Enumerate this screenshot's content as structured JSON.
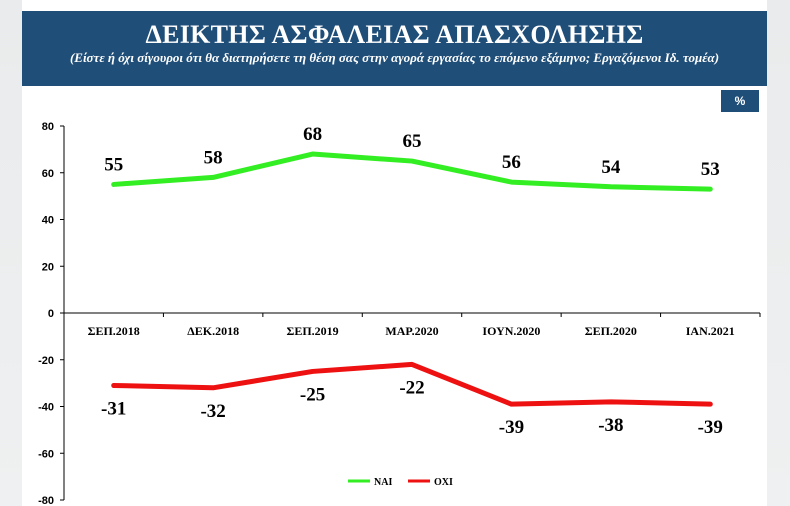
{
  "header": {
    "title": "ΔΕΙΚΤΗΣ ΑΣΦΑΛΕΙΑΣ ΑΠΑΣΧΟΛΗΣΗΣ",
    "subtitle": "(Είστε ή όχι σίγουροι ότι θα διατηρήσετε τη θέση σας στην αγορά εργασίας το επόμενο εξάμηνο; Εργαζόμενοι Ιδ. τομέα)"
  },
  "unit_badge": "%",
  "colors": {
    "header_bg": "#1f4e79",
    "series_yes": "#33ee22",
    "series_no": "#ee1111"
  },
  "chart_data": {
    "type": "line",
    "title": "ΔΕΙΚΤΗΣ ΑΣΦΑΛΕΙΑΣ ΑΠΑΣΧΟΛΗΣΗΣ",
    "categories": [
      "ΣΕΠ.2018",
      "ΔΕΚ.2018",
      "ΣΕΠ.2019",
      "ΜΑΡ.2020",
      "ΙΟΥΝ.2020",
      "ΣΕΠ.2020",
      "ΙΑΝ.2021"
    ],
    "series": [
      {
        "name": "ΝΑΙ",
        "values": [
          55,
          58,
          68,
          65,
          56,
          54,
          53
        ],
        "color": "#33ee22"
      },
      {
        "name": "ΟΧΙ",
        "values": [
          -31,
          -32,
          -25,
          -22,
          -39,
          -38,
          -39
        ],
        "color": "#ee1111"
      }
    ],
    "ylim": [
      -80,
      80
    ],
    "yticks": [
      80,
      60,
      40,
      20,
      0,
      -20,
      -40,
      -60,
      -80
    ],
    "xlabel": "",
    "ylabel": "",
    "grid": false,
    "legend_position": "bottom-center"
  }
}
